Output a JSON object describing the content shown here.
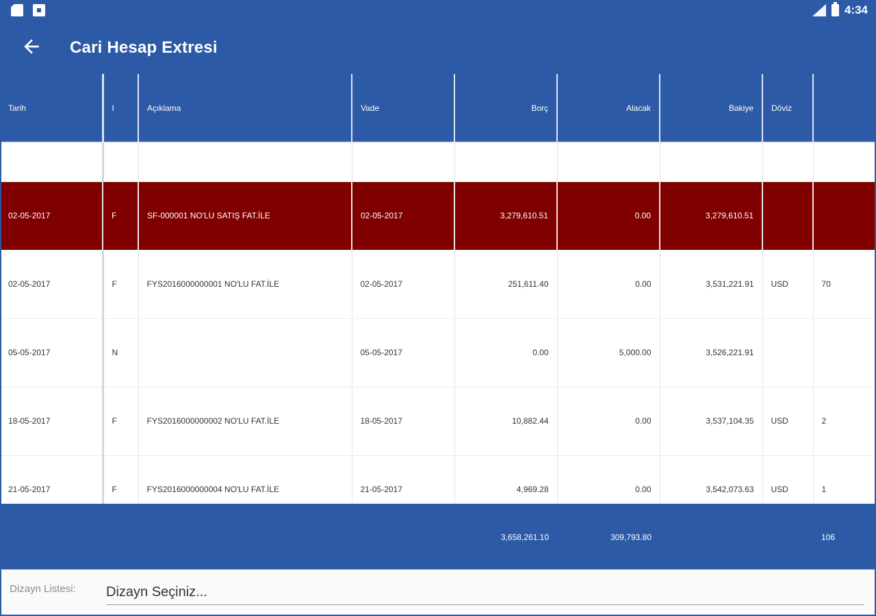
{
  "status_bar": {
    "time": "4:34",
    "left_icons": [
      "sd-card-icon",
      "download-box-icon"
    ],
    "right_icons": [
      "signal-icon",
      "battery-icon"
    ]
  },
  "app_bar": {
    "title": "Cari Hesap Extresi",
    "back_icon": "arrow-left-icon"
  },
  "colors": {
    "primary": "#2c5aa6",
    "selected_row": "#800000",
    "background": "#ffffff"
  },
  "table": {
    "columns": [
      "Tarih",
      "I",
      "Açıklama",
      "Vade",
      "Borç",
      "Alacak",
      "Bakiye",
      "Döviz",
      ""
    ],
    "rows": [
      {
        "tarih": "02-05-2017",
        "i": "F",
        "aciklama": "SF-000001 NO'LU SATIŞ FAT.İLE",
        "vade": "02-05-2017",
        "borc": "3,279,610.51",
        "alacak": "0.00",
        "bakiye": "3,279,610.51",
        "doviz": "",
        "extra": "",
        "selected": true
      },
      {
        "tarih": "02-05-2017",
        "i": "F",
        "aciklama": "FYS2016000000001 NO'LU FAT.İLE",
        "vade": "02-05-2017",
        "borc": "251,611.40",
        "alacak": "0.00",
        "bakiye": "3,531,221.91",
        "doviz": "USD",
        "extra": "70",
        "selected": false
      },
      {
        "tarih": "05-05-2017",
        "i": "N",
        "aciklama": "",
        "vade": "05-05-2017",
        "borc": "0.00",
        "alacak": "5,000.00",
        "bakiye": "3,526,221.91",
        "doviz": "",
        "extra": "",
        "selected": false
      },
      {
        "tarih": "18-05-2017",
        "i": "F",
        "aciklama": "FYS2016000000002 NO'LU FAT.İLE",
        "vade": "18-05-2017",
        "borc": "10,882.44",
        "alacak": "0.00",
        "bakiye": "3,537,104.35",
        "doviz": "USD",
        "extra": "2",
        "selected": false
      },
      {
        "tarih": "21-05-2017",
        "i": "F",
        "aciklama": "FYS2016000000004 NO'LU FAT.İLE",
        "vade": "21-05-2017",
        "borc": "4,969.28",
        "alacak": "0.00",
        "bakiye": "3,542,073.63",
        "doviz": "USD",
        "extra": "1",
        "selected": false
      }
    ]
  },
  "footer": {
    "borc_total": "3,658,261.10",
    "alacak_total": "309,793.80",
    "extra_total": "106"
  },
  "design_list": {
    "label": "Dizayn Listesi:",
    "value": "Dizayn Seçiniz..."
  }
}
